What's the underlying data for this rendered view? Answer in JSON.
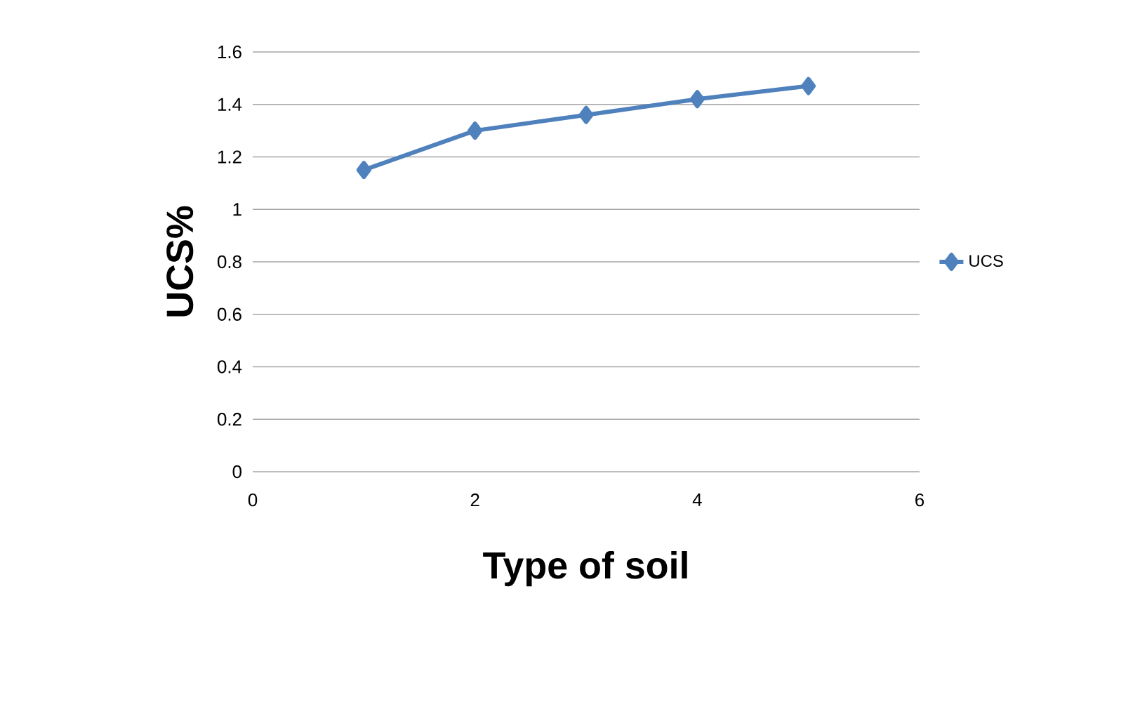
{
  "chart_data": {
    "type": "line",
    "xlabel": "Type of soil",
    "ylabel": "UCS%",
    "x": [
      1,
      2,
      3,
      4,
      5
    ],
    "series": [
      {
        "name": "UCS",
        "color": "#4f81bd",
        "values": [
          1.15,
          1.3,
          1.36,
          1.42,
          1.47
        ]
      }
    ],
    "xlim": [
      0,
      6
    ],
    "xticks": [
      0,
      2,
      4,
      6
    ],
    "ylim": [
      0,
      1.6
    ],
    "yticks": [
      0,
      0.2,
      0.4,
      0.6,
      0.8,
      1,
      1.2,
      1.4,
      1.6
    ],
    "grid": "y",
    "legend": "right",
    "marker": "diamond",
    "line_style": "solid"
  }
}
